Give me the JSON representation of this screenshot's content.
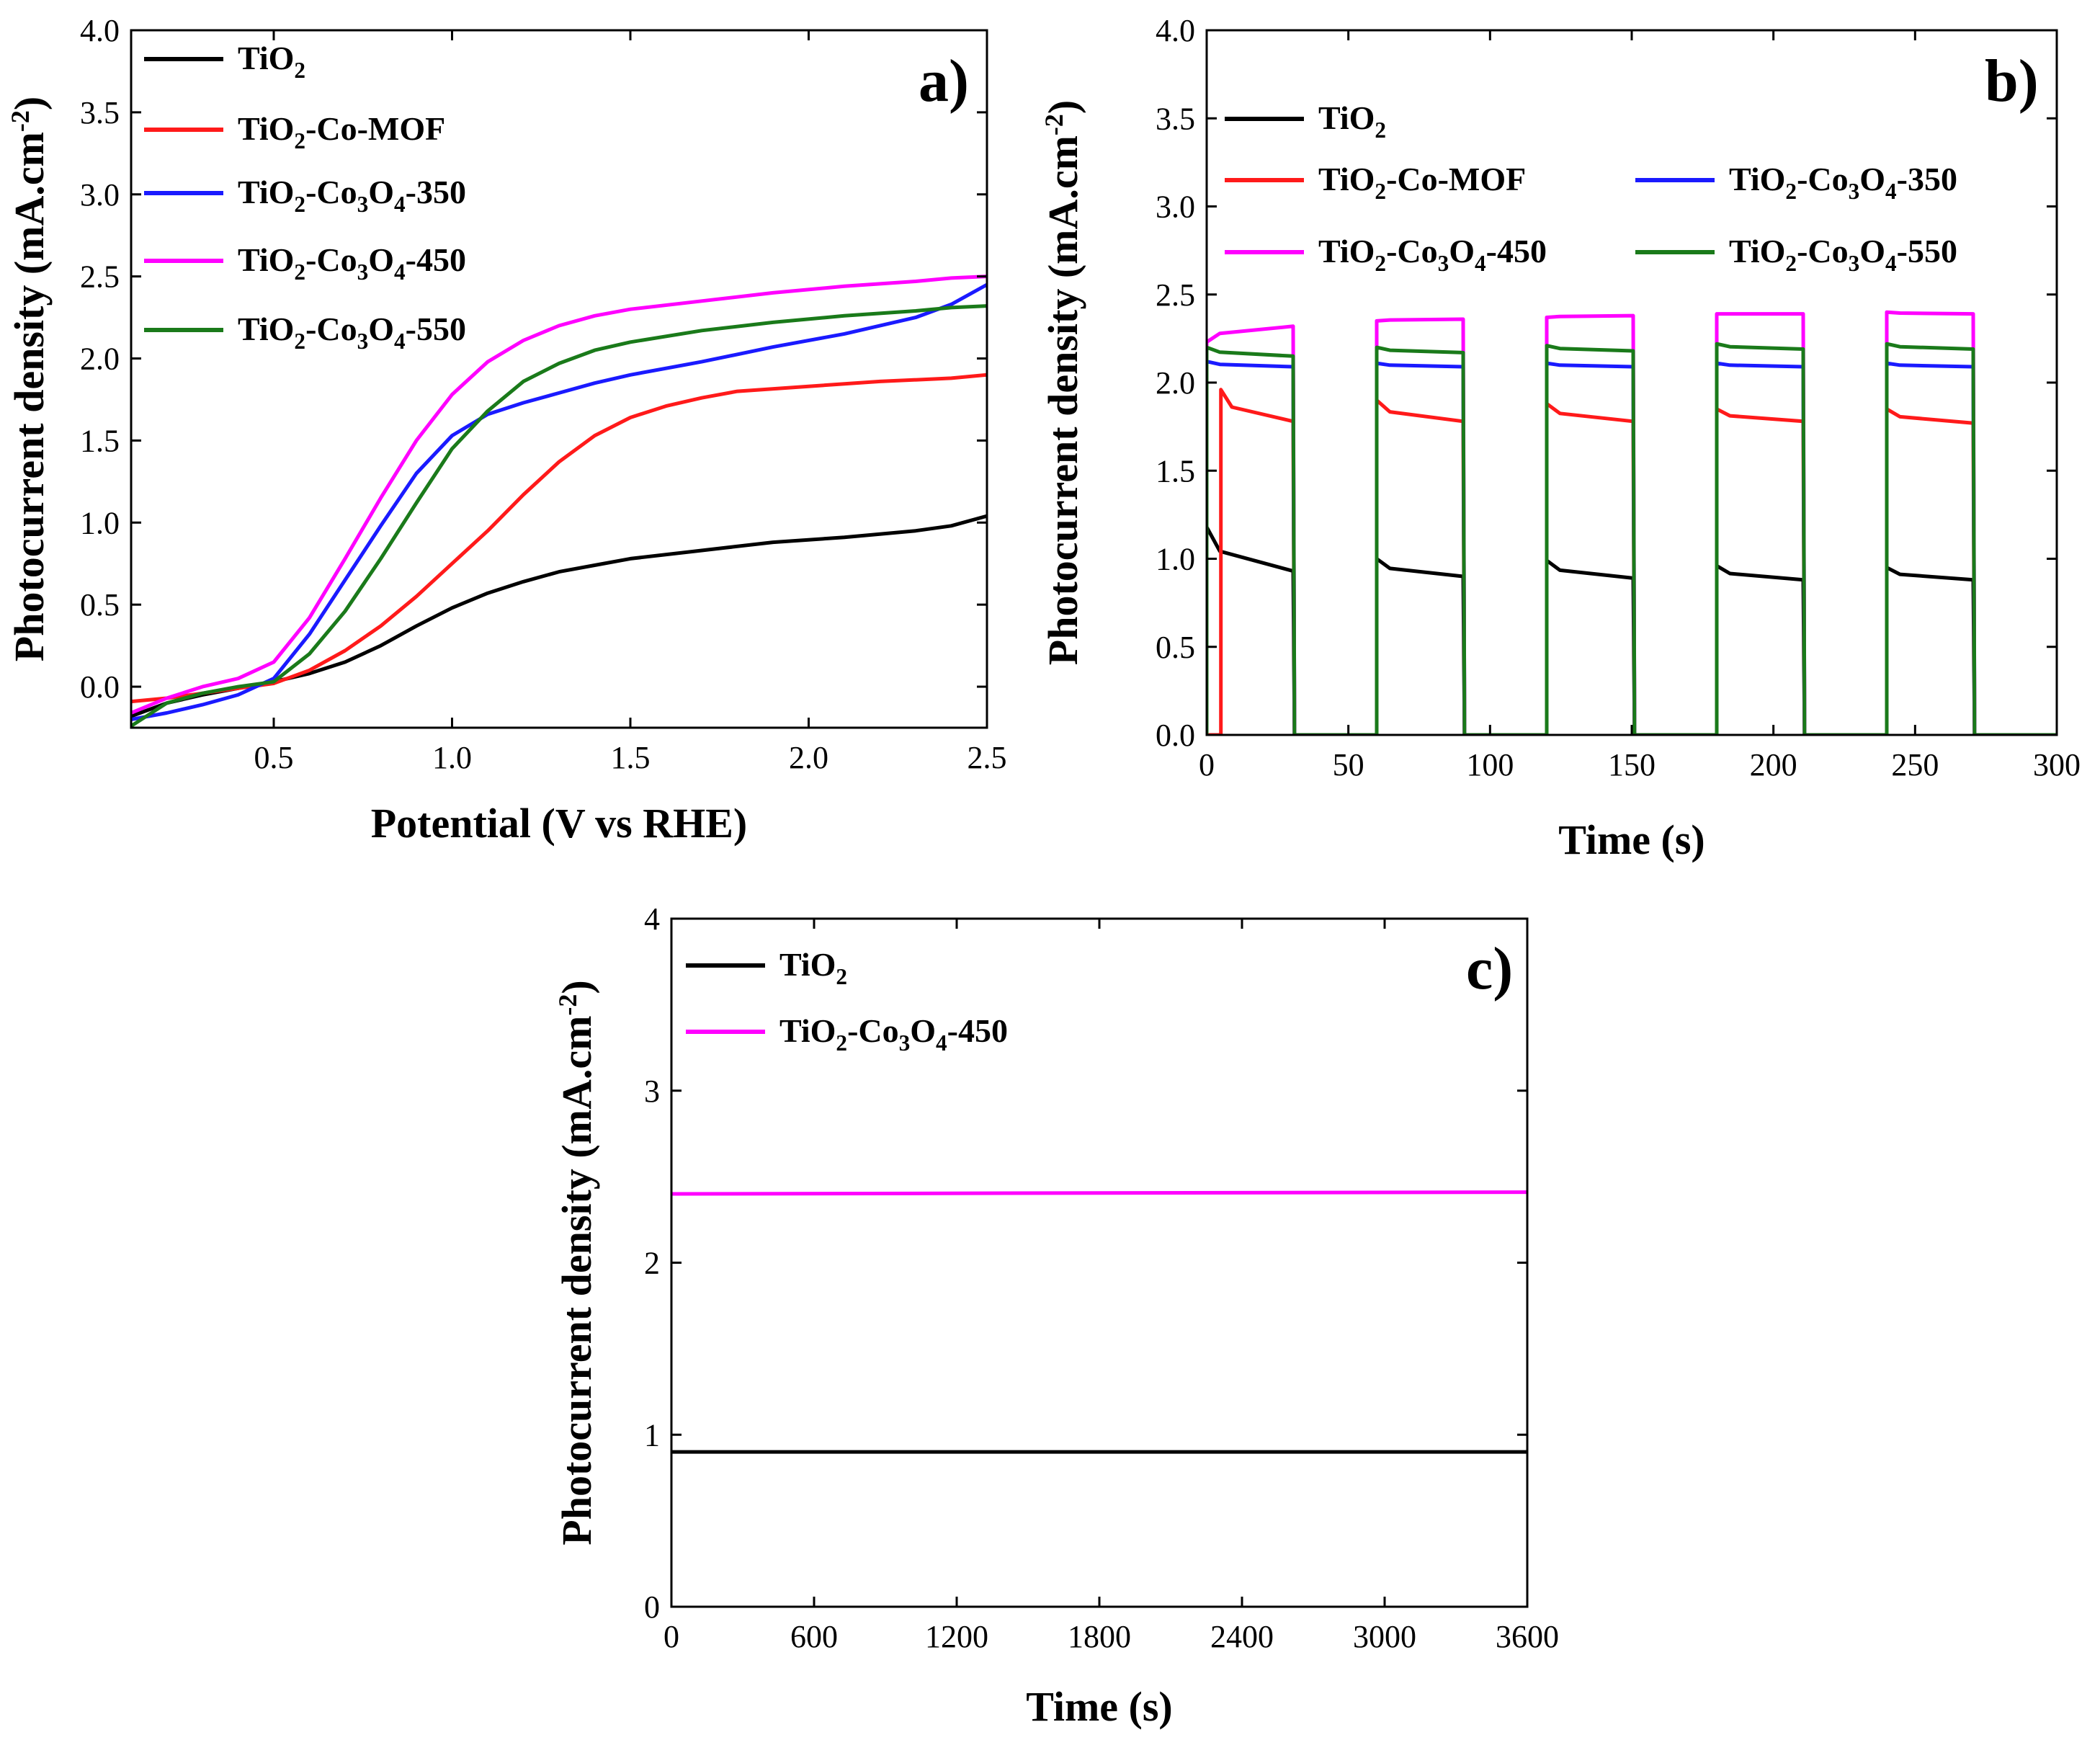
{
  "chart_data": [
    {
      "panel": "a)",
      "type": "line",
      "xlabel": "Potential (V vs RHE)",
      "ylabel": "Photocurrent density (mA.cm-2)",
      "xlim": [
        0.1,
        2.5
      ],
      "ylim": [
        -0.25,
        4.0
      ],
      "xticks": [
        0.5,
        1.0,
        1.5,
        2.0,
        2.5
      ],
      "xtick_labels": [
        "0.5",
        "1.0",
        "1.5",
        "2.0",
        "2.5"
      ],
      "yticks": [
        0.0,
        0.5,
        1.0,
        1.5,
        2.0,
        2.5,
        3.0,
        3.5,
        4.0
      ],
      "ytick_labels": [
        "0.0",
        "0.5",
        "1.0",
        "1.5",
        "2.0",
        "2.5",
        "3.0",
        "3.5",
        "4.0"
      ],
      "legend_position": "top-left",
      "series": [
        {
          "name": "TiO2",
          "color": "#000000",
          "x": [
            0.1,
            0.2,
            0.3,
            0.4,
            0.5,
            0.6,
            0.7,
            0.8,
            0.9,
            1.0,
            1.1,
            1.2,
            1.3,
            1.4,
            1.5,
            1.7,
            1.9,
            2.1,
            2.3,
            2.4,
            2.5
          ],
          "y": [
            -0.18,
            -0.1,
            -0.05,
            -0.01,
            0.03,
            0.08,
            0.15,
            0.25,
            0.37,
            0.48,
            0.57,
            0.64,
            0.7,
            0.74,
            0.78,
            0.83,
            0.88,
            0.91,
            0.95,
            0.98,
            1.04
          ]
        },
        {
          "name": "TiO2-Co-MOF",
          "color": "#ff1a1a",
          "x": [
            0.1,
            0.2,
            0.3,
            0.4,
            0.5,
            0.6,
            0.7,
            0.8,
            0.9,
            1.0,
            1.1,
            1.2,
            1.3,
            1.4,
            1.5,
            1.6,
            1.7,
            1.8,
            2.0,
            2.2,
            2.4,
            2.5
          ],
          "y": [
            -0.09,
            -0.07,
            -0.04,
            -0.01,
            0.02,
            0.1,
            0.22,
            0.37,
            0.55,
            0.75,
            0.95,
            1.17,
            1.37,
            1.53,
            1.64,
            1.71,
            1.76,
            1.8,
            1.83,
            1.86,
            1.88,
            1.9
          ]
        },
        {
          "name": "TiO2-Co3O4-350",
          "color": "#1a1aff",
          "x": [
            0.1,
            0.2,
            0.3,
            0.4,
            0.5,
            0.6,
            0.7,
            0.8,
            0.9,
            1.0,
            1.1,
            1.2,
            1.3,
            1.4,
            1.5,
            1.7,
            1.9,
            2.1,
            2.3,
            2.4,
            2.5
          ],
          "y": [
            -0.2,
            -0.16,
            -0.11,
            -0.05,
            0.05,
            0.32,
            0.65,
            0.98,
            1.3,
            1.53,
            1.66,
            1.73,
            1.79,
            1.85,
            1.9,
            1.98,
            2.07,
            2.15,
            2.25,
            2.33,
            2.45
          ]
        },
        {
          "name": "TiO2-Co3O4-450",
          "color": "#ff00ff",
          "x": [
            0.1,
            0.2,
            0.3,
            0.4,
            0.5,
            0.6,
            0.7,
            0.8,
            0.9,
            1.0,
            1.1,
            1.2,
            1.3,
            1.4,
            1.5,
            1.7,
            1.9,
            2.1,
            2.3,
            2.4,
            2.5
          ],
          "y": [
            -0.16,
            -0.07,
            0.0,
            0.05,
            0.15,
            0.42,
            0.78,
            1.15,
            1.5,
            1.78,
            1.98,
            2.11,
            2.2,
            2.26,
            2.3,
            2.35,
            2.4,
            2.44,
            2.47,
            2.49,
            2.5
          ]
        },
        {
          "name": "TiO2-Co3O4-550",
          "color": "#1a7a1a",
          "x": [
            0.1,
            0.2,
            0.3,
            0.4,
            0.5,
            0.6,
            0.7,
            0.8,
            0.9,
            1.0,
            1.1,
            1.2,
            1.3,
            1.4,
            1.5,
            1.7,
            1.9,
            2.1,
            2.3,
            2.4,
            2.5
          ],
          "y": [
            -0.24,
            -0.1,
            -0.04,
            0.0,
            0.03,
            0.2,
            0.46,
            0.78,
            1.12,
            1.45,
            1.68,
            1.86,
            1.97,
            2.05,
            2.1,
            2.17,
            2.22,
            2.26,
            2.29,
            2.31,
            2.32
          ]
        }
      ]
    },
    {
      "panel": "b)",
      "type": "line",
      "xlabel": "Time (s)",
      "ylabel": "Photocurrent density (mA.cm-2)",
      "xlim": [
        0,
        300
      ],
      "ylim": [
        0.0,
        4.0
      ],
      "xticks": [
        0,
        50,
        100,
        150,
        200,
        250,
        300
      ],
      "xtick_labels": [
        "0",
        "50",
        "100",
        "150",
        "200",
        "250",
        "300"
      ],
      "yticks": [
        0.0,
        0.5,
        1.0,
        1.5,
        2.0,
        2.5,
        3.0,
        3.5,
        4.0
      ],
      "ytick_labels": [
        "0.0",
        "0.5",
        "1.0",
        "1.5",
        "2.0",
        "2.5",
        "3.0",
        "3.5",
        "4.0"
      ],
      "legend_position": "top-left",
      "light_on_intervals": [
        [
          0,
          31
        ],
        [
          60,
          91
        ],
        [
          120,
          151
        ],
        [
          180,
          211
        ],
        [
          240,
          271
        ]
      ],
      "series": [
        {
          "name": "TiO2",
          "color": "#000000",
          "plateau_start": [
            1.18,
            1.0,
            0.99,
            0.96,
            0.95
          ],
          "plateau_end": [
            0.93,
            0.9,
            0.89,
            0.88,
            0.88
          ]
        },
        {
          "name": "TiO2-Co-MOF",
          "color": "#ff1a1a",
          "onset_delay": 5,
          "plateau_start": [
            1.96,
            1.9,
            1.88,
            1.85,
            1.85
          ],
          "plateau_end": [
            1.78,
            1.78,
            1.78,
            1.78,
            1.77
          ]
        },
        {
          "name": "TiO2-Co3O4-350",
          "color": "#1a1aff",
          "plateau_start": [
            2.12,
            2.11,
            2.11,
            2.11,
            2.11
          ],
          "plateau_end": [
            2.09,
            2.09,
            2.09,
            2.09,
            2.09
          ]
        },
        {
          "name": "TiO2-Co3O4-450",
          "color": "#ff00ff",
          "plateau_start": [
            2.23,
            2.35,
            2.37,
            2.39,
            2.4
          ],
          "plateau_end": [
            2.32,
            2.36,
            2.38,
            2.39,
            2.39
          ]
        },
        {
          "name": "TiO2-Co3O4-550",
          "color": "#1a7a1a",
          "plateau_start": [
            2.2,
            2.2,
            2.21,
            2.22,
            2.22
          ],
          "plateau_end": [
            2.15,
            2.17,
            2.18,
            2.19,
            2.19
          ]
        }
      ]
    },
    {
      "panel": "c)",
      "type": "line",
      "xlabel": "Time (s)",
      "ylabel": "Photocurrent density (mA.cm-2)",
      "xlim": [
        0,
        3600
      ],
      "ylim": [
        0,
        4
      ],
      "xticks": [
        0,
        600,
        1200,
        1800,
        2400,
        3000,
        3600
      ],
      "xtick_labels": [
        "0",
        "600",
        "1200",
        "1800",
        "2400",
        "3000",
        "3600"
      ],
      "yticks": [
        0,
        1,
        2,
        3,
        4
      ],
      "ytick_labels": [
        "0",
        "1",
        "2",
        "3",
        "4"
      ],
      "legend_position": "top-left",
      "series": [
        {
          "name": "TiO2",
          "color": "#000000",
          "x": [
            0,
            3600
          ],
          "y": [
            0.9,
            0.9
          ]
        },
        {
          "name": "TiO2-Co3O4-450",
          "color": "#ff00ff",
          "x": [
            0,
            3600
          ],
          "y": [
            2.4,
            2.41
          ]
        }
      ]
    }
  ]
}
